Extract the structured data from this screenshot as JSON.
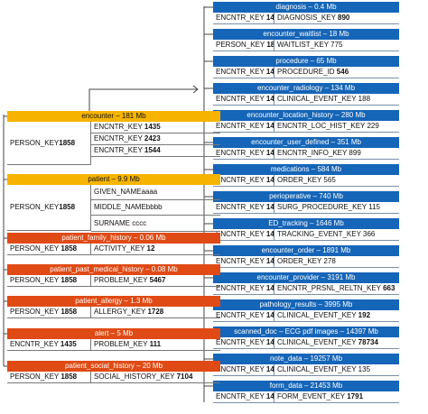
{
  "colors": {
    "blue": "#1565b8",
    "red": "#e04a14",
    "yellow": "#f6b400",
    "line": "#444444"
  },
  "right_tables": [
    {
      "title": "diagnosis – 0.4 Mb",
      "left": "ENCNTR_KEY ",
      "left_num": "1435",
      "right": "DIAGNOSIS_KEY ",
      "right_num": "890"
    },
    {
      "title": "encounter_waitlist – 18 Mb",
      "left": "PERSON_KEY ",
      "left_num": "1858",
      "right": "WAITLIST_KEY 775",
      "right_num": ""
    },
    {
      "title": "procedure – 65 Mb",
      "left": "ENCNTR_KEY ",
      "left_num": "1435",
      "right": "PROCEDURE_ID ",
      "right_num": "546"
    },
    {
      "title": "encounter_radiology – 134 Mb",
      "left": "ENCNTR_KEY ",
      "left_num": "1435",
      "right": "CLINICAL_EVENT_KEY 188",
      "right_num": ""
    },
    {
      "title": "encounter_location_history – 280 Mb",
      "left": "ENCNTR_KEY ",
      "left_num": "1435",
      "right": "ENCNTR_LOC_HIST_KEY 229",
      "right_num": ""
    },
    {
      "title": "encounter_user_defined – 351 Mb",
      "left": "ENCNTR_KEY ",
      "left_num": "1435",
      "right": "ENCNTR_INFO_KEY 899",
      "right_num": ""
    },
    {
      "title": "medications – 584 Mb",
      "left": "ENCNTR_KEY ",
      "left_num": "1435",
      "right": "ORDER_KEY 565",
      "right_num": ""
    },
    {
      "title": "perioperative – 740 Mb",
      "left": "ENCNTR_KEY ",
      "left_num": "1435",
      "right": "SURG_PROCEDURE_KEY 115",
      "right_num": ""
    },
    {
      "title": "ED_tracking – 1646 Mb",
      "left": "ENCNTR_KEY ",
      "left_num": "1435",
      "right": "TRACKING_EVENT_KEY 366",
      "right_num": ""
    },
    {
      "title": "encounter_order – 1891 Mb",
      "left": "ENCNTR_KEY ",
      "left_num": "1435",
      "right": "ORDER_KEY 278",
      "right_num": ""
    },
    {
      "title": "encounter_provider – 3191 Mb",
      "left": "ENCNTR_KEY ",
      "left_num": "1435",
      "right": "ENCNTR_PRSNL_RELTN_KEY ",
      "right_num": "663"
    },
    {
      "title": "pathology_results – 3995 Mb",
      "left": "ENCNTR_KEY ",
      "left_num": "1435",
      "right": "CLINICAL_EVENT_KEY ",
      "right_num": "192"
    },
    {
      "title": "scanned_doc – ECG pdf images – 14397 Mb",
      "left": "ENCNTR_KEY ",
      "left_num": "1435",
      "right": "CLINICAL_EVENT_KEY ",
      "right_num": "78734"
    },
    {
      "title": "note_data – 19257 Mb",
      "left": "ENCNTR_KEY ",
      "left_num": "1435",
      "right": "CLINICAL_EVENT_KEY 135",
      "right_num": ""
    },
    {
      "title": "form_data – 21453 Mb",
      "left": "ENCNTR_KEY ",
      "left_num": "1435",
      "right": "FORM_EVENT_KEY ",
      "right_num": "1791"
    }
  ],
  "encounter": {
    "title": "encounter – 181 Mb",
    "person_label": "PERSON_KEY ",
    "person_num": "1858",
    "rows": [
      {
        "label": "ENCNTR_KEY ",
        "num": "1435"
      },
      {
        "label": "ENCNTR_KEY ",
        "num": "2423"
      },
      {
        "label": "ENCNTR_KEY ",
        "num": "1544"
      }
    ]
  },
  "patient": {
    "title": "patient – 9.9 Mb",
    "person_label": "PERSON_KEY ",
    "person_num": "1858",
    "rows": [
      {
        "label": "GIVEN_NAMEaaaa"
      },
      {
        "label": "MIDDLE_NAMEbbbb"
      },
      {
        "label": "SURNAME cccc"
      }
    ]
  },
  "left_tables": [
    {
      "title": "patient_family_history – 0.06 Mb",
      "left": "PERSON_KEY ",
      "left_num": "1858",
      "right": "ACTIVITY_KEY ",
      "right_num": "12"
    },
    {
      "title": "patient_past_medical_history – 0.08 Mb",
      "left": "PERSON_KEY ",
      "left_num": "1858",
      "right": "PROBLEM_KEY ",
      "right_num": "5467"
    },
    {
      "title": "patient_allergy – 1.3 Mb",
      "left": "PERSON_KEY ",
      "left_num": "1858",
      "right": "ALLERGY_KEY ",
      "right_num": "1728"
    },
    {
      "title": "alert – 5 Mb",
      "left": "ENCNTR_KEY ",
      "left_num": "1435",
      "right": "PROBLEM_KEY ",
      "right_num": "111"
    },
    {
      "title": "patient_social_history – 20 Mb",
      "left": "PERSON_KEY ",
      "left_num": "1858",
      "right": "SOCIAL_HISTORY_KEY ",
      "right_num": "7104"
    }
  ]
}
